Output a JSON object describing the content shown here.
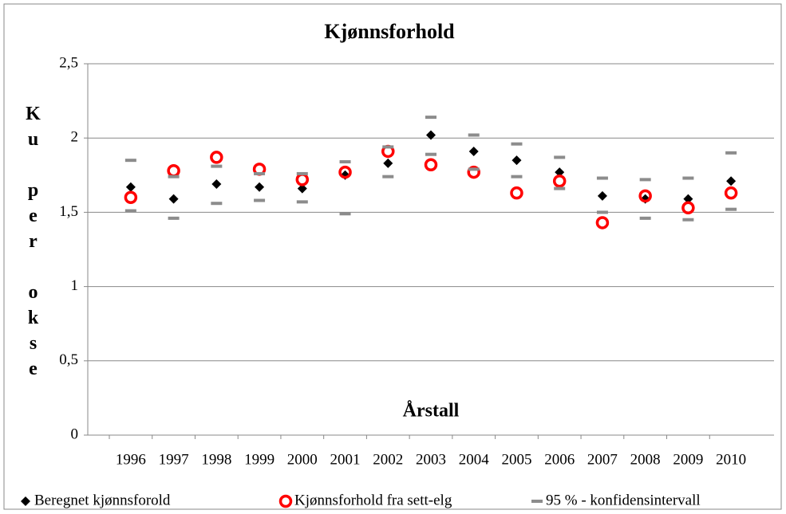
{
  "chart_data": {
    "type": "scatter",
    "title": "Kjønnsforhold",
    "y_label": "Ku per okse",
    "x_label": "Årstall",
    "categories": [
      "1996",
      "1997",
      "1998",
      "1999",
      "2000",
      "2001",
      "2002",
      "2003",
      "2004",
      "2005",
      "2006",
      "2007",
      "2008",
      "2009",
      "2010"
    ],
    "series": [
      {
        "name": "Beregnet kjønnsforold",
        "color": "#000000",
        "marker": "diamond",
        "values": [
          1.67,
          1.59,
          1.69,
          1.67,
          1.66,
          1.75,
          1.83,
          2.02,
          1.91,
          1.85,
          1.77,
          1.61,
          1.59,
          1.59,
          1.71
        ]
      },
      {
        "name": "Kjønnsforhold fra sett-elg",
        "color": "#ff0000",
        "marker": "circle",
        "values": [
          1.6,
          1.78,
          1.87,
          1.79,
          1.72,
          1.77,
          1.91,
          1.82,
          1.77,
          1.63,
          1.71,
          1.43,
          1.61,
          1.53,
          1.63
        ]
      },
      {
        "name": "95 % - konfidensintervall",
        "color": "#8c8c8c",
        "marker": "dash",
        "upper": [
          1.85,
          1.74,
          1.81,
          1.76,
          1.76,
          1.84,
          1.94,
          2.14,
          2.02,
          1.96,
          1.87,
          1.73,
          1.72,
          1.73,
          1.9
        ],
        "lower": [
          1.51,
          1.46,
          1.56,
          1.58,
          1.57,
          1.49,
          1.74,
          1.89,
          1.79,
          1.74,
          1.66,
          1.5,
          1.46,
          1.45,
          1.52
        ]
      }
    ],
    "ylim": [
      0,
      2.5
    ],
    "yticks": [
      0,
      {
        "value": 0.5,
        "label": "0,5"
      },
      1,
      {
        "value": 1.5,
        "label": "1,5"
      },
      2,
      {
        "value": 2.5,
        "label": "2,5"
      }
    ],
    "grid": true,
    "legend": "bottom"
  }
}
